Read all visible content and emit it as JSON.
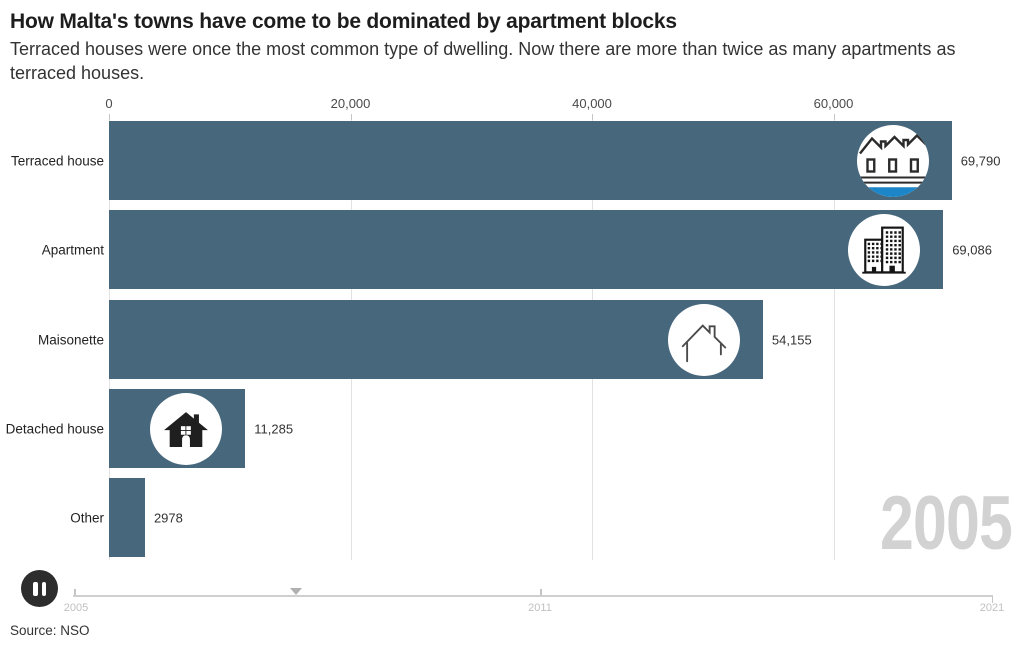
{
  "header": {
    "title": "How Malta's towns have come to be dominated by apartment blocks",
    "subtitle": "Terraced houses were once the most common type of dwelling. Now there are more than twice as many apartments as terraced houses."
  },
  "chart_data": {
    "type": "bar",
    "orientation": "horizontal",
    "title": "How Malta's towns have come to be dominated by apartment blocks",
    "categories": [
      "Terraced house",
      "Apartment",
      "Maisonette",
      "Detached house",
      "Other"
    ],
    "values": [
      69790,
      69086,
      54155,
      11285,
      2978
    ],
    "value_labels": [
      "69,790",
      "69,086",
      "54,155",
      "11,285",
      "2978"
    ],
    "bar_icons": [
      "terraced-house-icon",
      "apartment-icon",
      "maisonette-icon",
      "detached-house-icon",
      ""
    ],
    "x_ticks": [
      "0",
      "20,000",
      "40,000",
      "60,000"
    ],
    "x_tick_values": [
      0,
      20000,
      40000,
      60000
    ],
    "xlim": [
      0,
      74600
    ],
    "grid": true,
    "legend": "none",
    "bar_color": "#46677C",
    "current_frame": "2005"
  },
  "year_counter": "2005",
  "timeline": {
    "tick_labels": [
      "2005",
      "2011",
      "2021"
    ],
    "control": "pause-icon"
  },
  "footer": {
    "source": "Source: NSO"
  },
  "colors": {
    "bar": "#46677C",
    "year_counter": "#D2D2D2",
    "terraced_accent_blue": "#1D86C8",
    "gridline": "#E2E2E2"
  }
}
